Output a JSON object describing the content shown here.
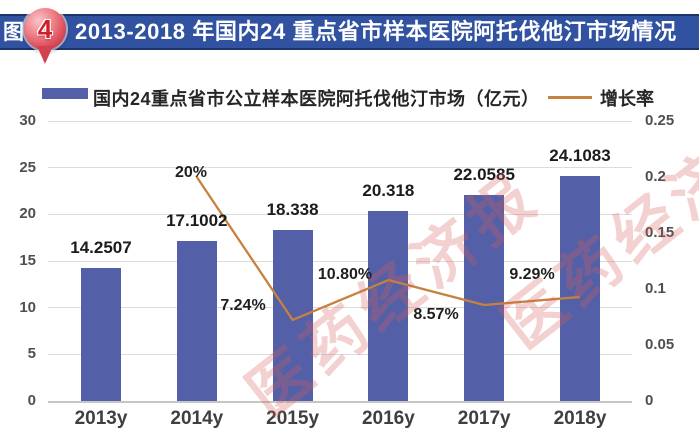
{
  "banner": {
    "fig_label": "图",
    "fig_number": "4",
    "title": "2013-2018 年国内24 重点省市样本医院阿托伐他汀市场情况"
  },
  "legend": {
    "bars": "国内24重点省市公立样本医院阿托伐他汀市场（亿元）",
    "line": "增长率"
  },
  "watermark": {
    "text": "医药经济报"
  },
  "colors": {
    "banner_bg": "#3052a0",
    "banner_text": "#ffffff",
    "pin_red": "#d2414d",
    "bar": "#5360a7",
    "line": "#c6813f",
    "gridline": "#dcdcdc",
    "label_text": "#1b1b1b",
    "watermark_red": "#d95c5c"
  },
  "chart_data": {
    "type": "bar",
    "subtype": "bar+line combo, dual axis",
    "categories": [
      "2013y",
      "2014y",
      "2015y",
      "2016y",
      "2017y",
      "2018y"
    ],
    "series": [
      {
        "name": "国内24重点省市公立样本医院阿托伐他汀市场（亿元）",
        "type": "bar",
        "axis": "left",
        "values": [
          14.2507,
          17.1002,
          18.338,
          20.318,
          22.0585,
          24.1083
        ],
        "labels": [
          "14.2507",
          "17.1002",
          "18.338",
          "20.318",
          "22.0585",
          "24.1083"
        ]
      },
      {
        "name": "增长率",
        "type": "line",
        "axis": "right",
        "values": [
          null,
          0.2,
          0.0724,
          0.108,
          0.0857,
          0.0929
        ],
        "labels": [
          null,
          "20%",
          "7.24%",
          "10.80%",
          "8.57%",
          "9.29%"
        ]
      }
    ],
    "left_axis": {
      "min": 0,
      "max": 30,
      "ticks": [
        "30",
        "25",
        "20",
        "15",
        "10",
        "5",
        "0"
      ]
    },
    "right_axis": {
      "min": 0,
      "max": 0.25,
      "ticks": [
        "0.25",
        "0.2",
        "0.15",
        "0.1",
        "0.05",
        "0"
      ]
    },
    "grid": "horizontal gridlines on",
    "legend_position": "top",
    "title": "2013-2018 年国内24 重点省市样本医院阿托伐他汀市场情况"
  }
}
